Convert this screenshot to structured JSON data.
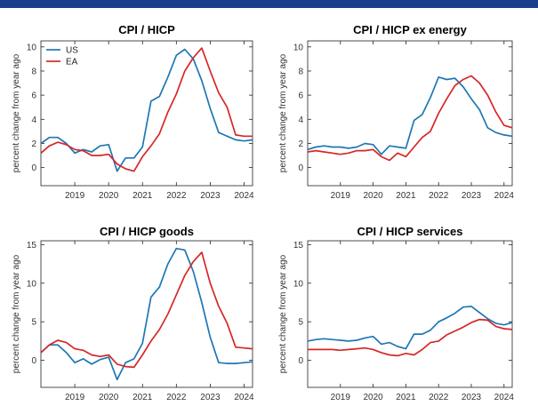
{
  "colors": {
    "us": "#1f77b4",
    "ea": "#d62728",
    "topbar": "#1c3f8c"
  },
  "chart_data": [
    {
      "type": "line",
      "title": "CPI / HICP",
      "ylabel": "percent change from year ago",
      "xticks": [
        "2019",
        "2020",
        "2021",
        "2022",
        "2023",
        "2024"
      ],
      "xlim": [
        2018.0,
        2024.25
      ],
      "ylim": [
        -1.5,
        10.5
      ],
      "yticks": [
        0,
        2,
        4,
        6,
        8,
        10
      ],
      "legend": "top-left",
      "grid": false,
      "series": [
        {
          "name": "US",
          "color": "#1f77b4",
          "x": [
            2018.0,
            2018.25,
            2018.5,
            2018.75,
            2019.0,
            2019.25,
            2019.5,
            2019.75,
            2020.0,
            2020.25,
            2020.5,
            2020.75,
            2021.0,
            2021.25,
            2021.5,
            2021.75,
            2022.0,
            2022.25,
            2022.5,
            2022.75,
            2023.0,
            2023.25,
            2023.5,
            2023.75,
            2024.0,
            2024.25
          ],
          "y": [
            2.0,
            2.5,
            2.5,
            2.0,
            1.2,
            1.5,
            1.3,
            1.8,
            1.9,
            -0.3,
            0.8,
            0.8,
            1.7,
            5.5,
            5.9,
            7.5,
            9.3,
            9.8,
            9.0,
            7.2,
            4.9,
            2.9,
            2.6,
            2.3,
            2.2,
            2.3
          ]
        },
        {
          "name": "EA",
          "color": "#d62728",
          "x": [
            2018.0,
            2018.25,
            2018.5,
            2018.75,
            2019.0,
            2019.25,
            2019.5,
            2019.75,
            2020.0,
            2020.25,
            2020.5,
            2020.75,
            2021.0,
            2021.25,
            2021.5,
            2021.75,
            2022.0,
            2022.25,
            2022.5,
            2022.75,
            2023.0,
            2023.25,
            2023.5,
            2023.75,
            2024.0,
            2024.25
          ],
          "y": [
            1.2,
            1.8,
            2.1,
            1.9,
            1.5,
            1.4,
            1.0,
            1.0,
            1.1,
            0.3,
            -0.1,
            -0.3,
            0.9,
            1.8,
            2.8,
            4.6,
            6.1,
            8.0,
            9.1,
            9.9,
            8.0,
            6.2,
            5.0,
            2.7,
            2.6,
            2.6
          ]
        }
      ]
    },
    {
      "type": "line",
      "title": "CPI / HICP ex energy",
      "ylabel": "percent change from year ago",
      "xticks": [
        "2019",
        "2020",
        "2021",
        "2022",
        "2023",
        "2024"
      ],
      "xlim": [
        2018.0,
        2024.25
      ],
      "ylim": [
        -1.5,
        10.5
      ],
      "yticks": [
        0,
        2,
        4,
        6,
        8,
        10
      ],
      "grid": false,
      "series": [
        {
          "name": "US",
          "color": "#1f77b4",
          "x": [
            2018.0,
            2018.25,
            2018.5,
            2018.75,
            2019.0,
            2019.25,
            2019.5,
            2019.75,
            2020.0,
            2020.25,
            2020.5,
            2020.75,
            2021.0,
            2021.25,
            2021.5,
            2021.75,
            2022.0,
            2022.25,
            2022.5,
            2022.75,
            2023.0,
            2023.25,
            2023.5,
            2023.75,
            2024.0,
            2024.25
          ],
          "y": [
            1.5,
            1.7,
            1.8,
            1.7,
            1.7,
            1.6,
            1.7,
            2.0,
            1.9,
            1.1,
            1.8,
            1.7,
            1.6,
            3.9,
            4.4,
            5.8,
            7.5,
            7.3,
            7.4,
            6.7,
            5.7,
            4.8,
            3.3,
            2.9,
            2.7,
            2.6
          ]
        },
        {
          "name": "EA",
          "color": "#d62728",
          "x": [
            2018.0,
            2018.25,
            2018.5,
            2018.75,
            2019.0,
            2019.25,
            2019.5,
            2019.75,
            2020.0,
            2020.25,
            2020.5,
            2020.75,
            2021.0,
            2021.25,
            2021.5,
            2021.75,
            2022.0,
            2022.25,
            2022.5,
            2022.75,
            2023.0,
            2023.25,
            2023.5,
            2023.75,
            2024.0,
            2024.25
          ],
          "y": [
            1.3,
            1.4,
            1.3,
            1.2,
            1.1,
            1.2,
            1.4,
            1.4,
            1.5,
            0.9,
            0.6,
            1.2,
            0.9,
            1.7,
            2.5,
            3.0,
            4.5,
            5.7,
            6.8,
            7.3,
            7.6,
            7.0,
            6.0,
            4.6,
            3.5,
            3.3
          ]
        }
      ]
    },
    {
      "type": "line",
      "title": "CPI / HICP goods",
      "ylabel": "percent change from year ago",
      "xticks": [
        "2019",
        "2020",
        "2021",
        "2022",
        "2023",
        "2024"
      ],
      "xlim": [
        2018.0,
        2024.25
      ],
      "ylim": [
        -3.5,
        15.5
      ],
      "yticks": [
        0,
        5,
        10,
        15
      ],
      "grid": false,
      "series": [
        {
          "name": "US",
          "color": "#1f77b4",
          "x": [
            2018.0,
            2018.25,
            2018.5,
            2018.75,
            2019.0,
            2019.25,
            2019.5,
            2019.75,
            2020.0,
            2020.25,
            2020.5,
            2020.75,
            2021.0,
            2021.25,
            2021.5,
            2021.75,
            2022.0,
            2022.25,
            2022.5,
            2022.75,
            2023.0,
            2023.25,
            2023.5,
            2023.75,
            2024.0,
            2024.25
          ],
          "y": [
            1.0,
            2.0,
            2.0,
            1.0,
            -0.3,
            0.2,
            -0.5,
            0.1,
            0.4,
            -2.5,
            -0.3,
            0.2,
            2.2,
            8.2,
            9.5,
            12.5,
            14.5,
            14.3,
            11.5,
            7.5,
            3.0,
            -0.3,
            -0.4,
            -0.4,
            -0.3,
            -0.2
          ]
        },
        {
          "name": "EA",
          "color": "#d62728",
          "x": [
            2018.0,
            2018.25,
            2018.5,
            2018.75,
            2019.0,
            2019.25,
            2019.5,
            2019.75,
            2020.0,
            2020.25,
            2020.5,
            2020.75,
            2021.0,
            2021.25,
            2021.5,
            2021.75,
            2022.0,
            2022.25,
            2022.5,
            2022.75,
            2023.0,
            2023.25,
            2023.5,
            2023.75,
            2024.0,
            2024.25
          ],
          "y": [
            1.0,
            2.0,
            2.6,
            2.3,
            1.5,
            1.3,
            0.7,
            0.5,
            0.7,
            -0.5,
            -0.8,
            -0.9,
            0.7,
            2.5,
            4.0,
            6.0,
            8.5,
            11.0,
            12.8,
            14.0,
            10.0,
            7.0,
            4.8,
            1.7,
            1.6,
            1.5
          ]
        }
      ]
    },
    {
      "type": "line",
      "title": "CPI / HICP services",
      "ylabel": "percent change from year ago",
      "xticks": [
        "2019",
        "2020",
        "2021",
        "2022",
        "2023",
        "2024"
      ],
      "xlim": [
        2018.0,
        2024.25
      ],
      "ylim": [
        -3.5,
        15.5
      ],
      "yticks": [
        0,
        5,
        10,
        15
      ],
      "grid": false,
      "series": [
        {
          "name": "US",
          "color": "#1f77b4",
          "x": [
            2018.0,
            2018.25,
            2018.5,
            2018.75,
            2019.0,
            2019.25,
            2019.5,
            2019.75,
            2020.0,
            2020.25,
            2020.5,
            2020.75,
            2021.0,
            2021.25,
            2021.5,
            2021.75,
            2022.0,
            2022.25,
            2022.5,
            2022.75,
            2023.0,
            2023.25,
            2023.5,
            2023.75,
            2024.0,
            2024.25
          ],
          "y": [
            2.5,
            2.7,
            2.8,
            2.7,
            2.6,
            2.5,
            2.6,
            2.9,
            3.1,
            2.1,
            2.3,
            1.8,
            1.5,
            3.4,
            3.4,
            3.9,
            5.0,
            5.5,
            6.1,
            6.9,
            7.0,
            6.2,
            5.4,
            4.8,
            4.6,
            4.9
          ]
        },
        {
          "name": "EA",
          "color": "#d62728",
          "x": [
            2018.0,
            2018.25,
            2018.5,
            2018.75,
            2019.0,
            2019.25,
            2019.5,
            2019.75,
            2020.0,
            2020.25,
            2020.5,
            2020.75,
            2021.0,
            2021.25,
            2021.5,
            2021.75,
            2022.0,
            2022.25,
            2022.5,
            2022.75,
            2023.0,
            2023.25,
            2023.5,
            2023.75,
            2024.0,
            2024.25
          ],
          "y": [
            1.4,
            1.4,
            1.4,
            1.4,
            1.3,
            1.4,
            1.5,
            1.6,
            1.4,
            1.0,
            0.7,
            0.6,
            0.9,
            0.7,
            1.4,
            2.3,
            2.5,
            3.3,
            3.8,
            4.3,
            4.9,
            5.3,
            5.2,
            4.4,
            4.1,
            4.0
          ]
        }
      ]
    }
  ]
}
